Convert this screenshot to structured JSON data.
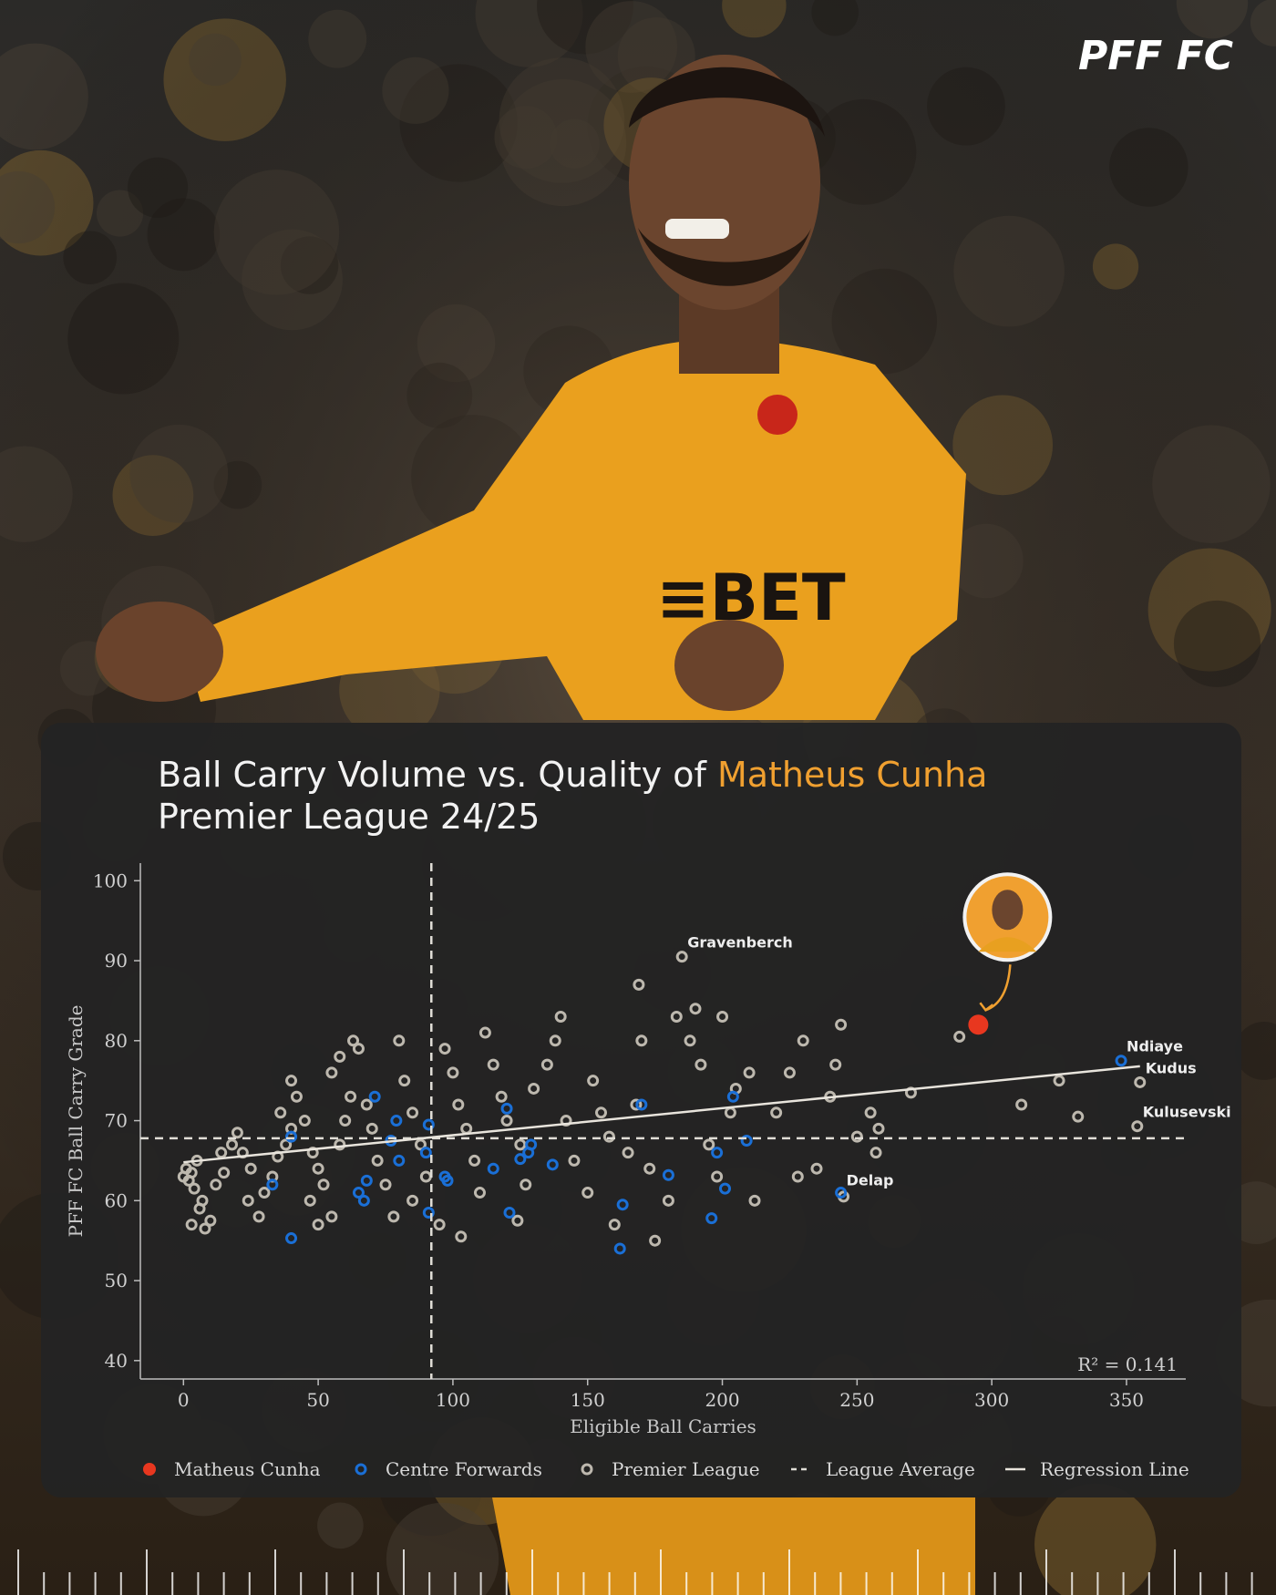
{
  "brand": "PFF FC",
  "chart_data": {
    "type": "scatter",
    "title": "Ball Carry Volume vs. Quality of",
    "title_highlight": "Matheus Cunha",
    "subtitle": "Premier League 24/25",
    "x_label": "Eligible Ball Carries",
    "y_label": "PFF FC Ball Carry Grade",
    "xlim": [
      -16,
      372
    ],
    "ylim": [
      37.7,
      102.2
    ],
    "xticks": [
      0,
      50,
      100,
      150,
      200,
      250,
      300,
      350
    ],
    "yticks": [
      40,
      50,
      60,
      70,
      80,
      90,
      100
    ],
    "r_squared_label": "R² = 0.141",
    "series": [
      {
        "name": "Matheus Cunha",
        "color": "#e8371f",
        "marker": "dot",
        "x": [
          295
        ],
        "y": [
          82
        ]
      },
      {
        "name": "Centre Forwards",
        "color": "#1a6fd6",
        "marker": "ring",
        "x": [
          40,
          33,
          40,
          65,
          67,
          68,
          71,
          77,
          80,
          79,
          90,
          91,
          91,
          97,
          98,
          115,
          120,
          121,
          125,
          128,
          129,
          137,
          162,
          163,
          170,
          180,
          196,
          198,
          201,
          204,
          209,
          244,
          348
        ],
        "y": [
          55.3,
          62,
          68,
          61,
          60,
          62.5,
          73,
          67.5,
          65,
          70,
          66,
          58.5,
          69.5,
          63,
          62.5,
          64,
          71.5,
          58.5,
          65.2,
          66,
          67,
          64.5,
          54,
          59.5,
          72,
          63.2,
          57.8,
          66,
          61.5,
          73,
          67.5,
          61,
          77.5
        ]
      },
      {
        "name": "Premier League",
        "color": "#bdb8ae",
        "marker": "ring",
        "x": [
          0,
          2,
          1,
          3,
          5,
          4,
          6,
          3,
          8,
          10,
          7,
          12,
          15,
          14,
          18,
          20,
          22,
          25,
          24,
          28,
          30,
          33,
          35,
          38,
          40,
          36,
          42,
          40,
          45,
          48,
          50,
          47,
          52,
          55,
          50,
          58,
          60,
          62,
          55,
          58,
          63,
          65,
          68,
          70,
          72,
          75,
          78,
          80,
          82,
          85,
          88,
          90,
          85,
          95,
          97,
          100,
          102,
          105,
          108,
          110,
          103,
          112,
          115,
          118,
          120,
          125,
          127,
          124,
          130,
          135,
          140,
          138,
          142,
          145,
          150,
          152,
          155,
          158,
          160,
          165,
          168,
          170,
          173,
          175,
          180,
          183,
          185,
          188,
          190,
          192,
          195,
          198,
          200,
          203,
          205,
          210,
          212,
          220,
          225,
          228,
          230,
          235,
          240,
          242,
          244,
          245,
          250,
          255,
          257,
          258,
          270,
          288,
          311,
          325,
          332,
          354,
          355,
          169
        ],
        "y": [
          63,
          62.5,
          64,
          63.5,
          65,
          61.5,
          59,
          57,
          56.5,
          57.5,
          60,
          62,
          63.5,
          66,
          67,
          68.5,
          66,
          64,
          60,
          58,
          61,
          63,
          65.5,
          67,
          69,
          71,
          73,
          75,
          70,
          66,
          64,
          60,
          62,
          58,
          57,
          67,
          70,
          73,
          76,
          78,
          80,
          79,
          72,
          69,
          65,
          62,
          58,
          80,
          75,
          71,
          67,
          63,
          60,
          57,
          79,
          76,
          72,
          69,
          65,
          61,
          55.5,
          81,
          77,
          73,
          70,
          67,
          62,
          57.5,
          74,
          77,
          83,
          80,
          70,
          65,
          61,
          75,
          71,
          68,
          57,
          66,
          72,
          80,
          64,
          55,
          60,
          83,
          90.5,
          80,
          84,
          77,
          67,
          63,
          83,
          71,
          74,
          76,
          60,
          71,
          76,
          63,
          80,
          64,
          73,
          77,
          82,
          60.5,
          68,
          71,
          66,
          69,
          73.5,
          80.5,
          72,
          75,
          70.5,
          69.3,
          74.8,
          87
        ]
      }
    ],
    "lines": [
      {
        "name": "League Average",
        "x": 92,
        "y": 67.8,
        "style": "dashed",
        "color": "#e0ddd6"
      },
      {
        "name": "Regression Line",
        "x": [
          0,
          355
        ],
        "y": [
          64.8,
          76.8
        ],
        "style": "solid",
        "color": "#e8e4dc"
      }
    ],
    "annotations": [
      {
        "text": "Gravenberch",
        "x": 185,
        "y": 90.5
      },
      {
        "text": "Ndiaye",
        "x": 348,
        "y": 77.5
      },
      {
        "text": "Kudus",
        "x": 355,
        "y": 74.8
      },
      {
        "text": "Kulusevski",
        "x": 354,
        "y": 69.3
      },
      {
        "text": "Delap",
        "x": 244,
        "y": 60.8
      }
    ]
  }
}
